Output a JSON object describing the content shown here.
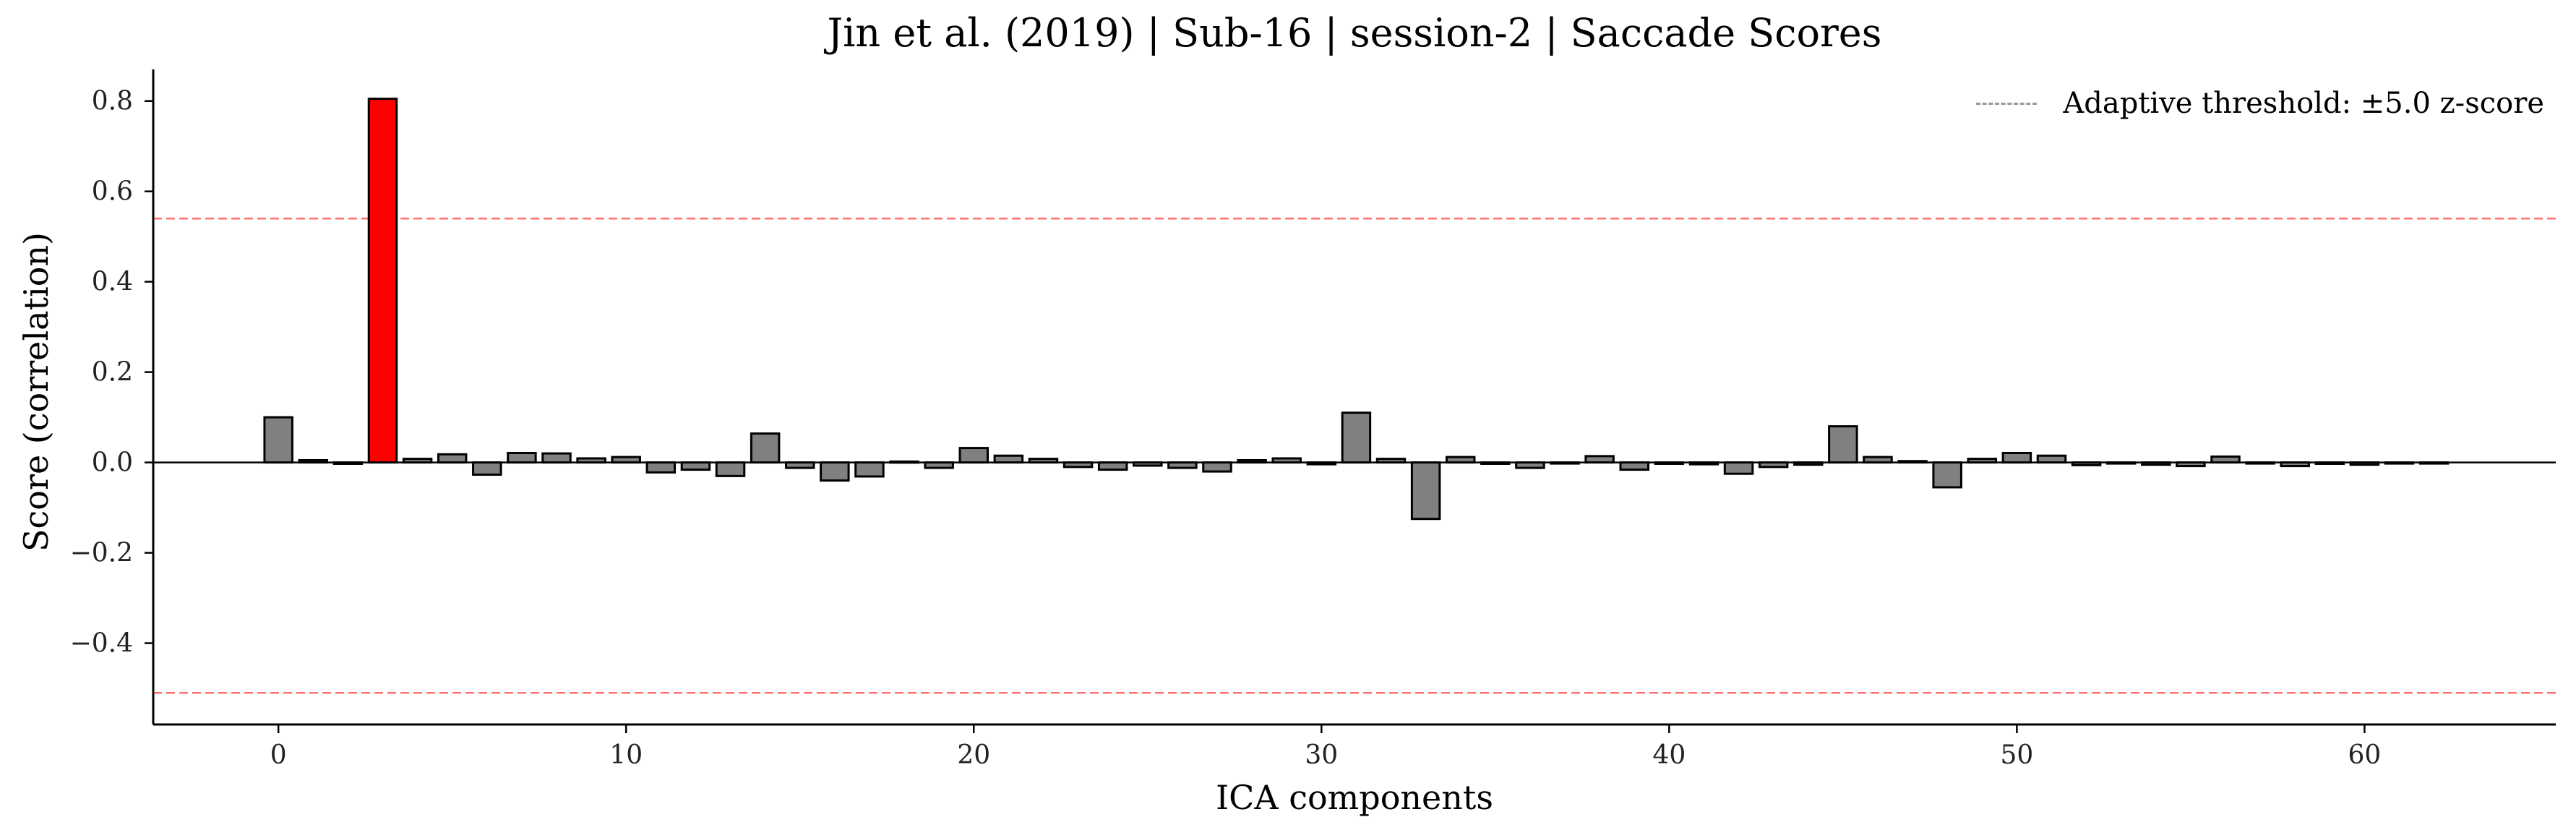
{
  "chart_data": {
    "type": "bar",
    "title": "Jin et al. (2019) | Sub-16 | session-2 | Saccade Scores",
    "xlabel": "ICA components",
    "ylabel": "Score (correlation)",
    "xlim": [
      -3.6,
      65.5
    ],
    "ylim": [
      -0.58,
      0.87
    ],
    "x_ticks": [
      0,
      10,
      20,
      30,
      40,
      50,
      60
    ],
    "y_ticks": [
      -0.4,
      -0.2,
      0.0,
      0.2,
      0.4,
      0.6,
      0.8
    ],
    "y_tick_labels": [
      "−0.4",
      "−0.2",
      "0.0",
      "0.2",
      "0.4",
      "0.6",
      "0.8"
    ],
    "threshold": {
      "upper": 0.54,
      "lower": -0.51
    },
    "legend": {
      "label": "Adaptive threshold: ±5.0 z-score",
      "placement": "top-right"
    },
    "grid": false,
    "flagged_components": [
      3
    ],
    "x": [
      0,
      1,
      2,
      3,
      4,
      5,
      6,
      7,
      8,
      9,
      10,
      11,
      12,
      13,
      14,
      15,
      16,
      17,
      18,
      19,
      20,
      21,
      22,
      23,
      24,
      25,
      26,
      27,
      28,
      29,
      30,
      31,
      32,
      33,
      34,
      35,
      36,
      37,
      38,
      39,
      40,
      41,
      42,
      43,
      44,
      45,
      46,
      47,
      48,
      49,
      50,
      51,
      52,
      53,
      54,
      55,
      56,
      57,
      58,
      59,
      60,
      61,
      62
    ],
    "values": [
      0.1,
      0.005,
      -0.003,
      0.805,
      0.008,
      0.018,
      -0.027,
      0.021,
      0.02,
      0.009,
      0.012,
      -0.022,
      -0.016,
      -0.03,
      0.064,
      -0.012,
      -0.04,
      -0.031,
      0.002,
      -0.012,
      0.032,
      0.015,
      0.008,
      -0.01,
      -0.016,
      -0.007,
      -0.012,
      -0.02,
      0.005,
      0.009,
      -0.004,
      0.11,
      0.008,
      -0.125,
      0.012,
      -0.003,
      -0.012,
      -0.002,
      0.014,
      -0.016,
      -0.003,
      -0.004,
      -0.025,
      -0.01,
      -0.005,
      0.08,
      0.012,
      0.003,
      -0.055,
      0.008,
      0.021,
      0.015,
      -0.006,
      -0.002,
      -0.005,
      -0.008,
      0.013,
      -0.002,
      -0.008,
      -0.003,
      -0.005,
      -0.002,
      -0.002
    ]
  },
  "colors": {
    "normal_bar": "#808080",
    "flagged_bar": "#ff0000",
    "bar_edge": "#000000",
    "threshold_line": "#ff7070",
    "legend_line": "#999999"
  }
}
